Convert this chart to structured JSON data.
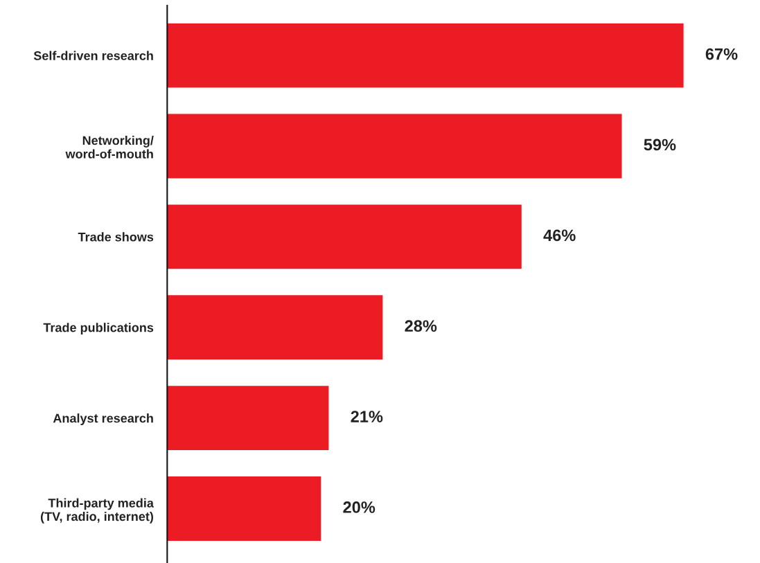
{
  "chart_data": {
    "type": "bar",
    "orientation": "horizontal",
    "categories": [
      "Self-driven research",
      "Networking/\nword-of-mouth",
      "Trade shows",
      "Trade publications",
      "Analyst research",
      "Third-party media\n(TV, radio, internet)"
    ],
    "values": [
      67,
      59,
      46,
      28,
      21,
      20
    ],
    "value_labels": [
      "67%",
      "59%",
      "46%",
      "28%",
      "21%",
      "20%"
    ],
    "color": "#ec1c24",
    "tick_labels": "y",
    "grid": false,
    "legend": false
  }
}
